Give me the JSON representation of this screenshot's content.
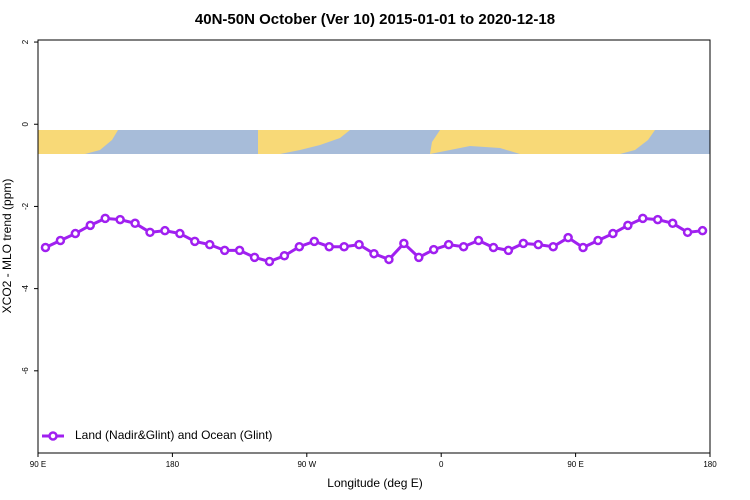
{
  "chart_data": {
    "type": "line",
    "title": "40N-50N October (Ver 10)   2015-01-01 to 2020-12-18",
    "x_label": "Longitude (deg E)",
    "y_label": "XCO2 - MLO trend (ppm)",
    "x": [
      95,
      105,
      115,
      125,
      135,
      145,
      155,
      165,
      175,
      185,
      195,
      205,
      215,
      225,
      235,
      245,
      255,
      265,
      275,
      285,
      295,
      305,
      315,
      325,
      335,
      345,
      355,
      365,
      375,
      385,
      395,
      405,
      415,
      425,
      435,
      445,
      455,
      465,
      475,
      485,
      495,
      505,
      515,
      525,
      535
    ],
    "series": [
      {
        "name": "Land (Nadir&Glint) and Ocean (Glint)",
        "color": "#a020f0",
        "values": [
          -3.0,
          -2.83,
          -2.66,
          -2.46,
          -2.29,
          -2.32,
          -2.41,
          -2.63,
          -2.59,
          -2.66,
          -2.85,
          -2.93,
          -3.07,
          -3.07,
          -3.24,
          -3.34,
          -3.2,
          -2.98,
          -2.85,
          -2.98,
          -2.98,
          -2.93,
          -3.15,
          -3.29,
          -2.9,
          -3.24,
          -3.05,
          -2.93,
          -2.98,
          -2.83,
          -3.0,
          -3.07,
          -2.9,
          -2.93,
          -2.98,
          -2.76,
          -3.0,
          -2.83,
          -2.66,
          -2.46,
          -2.29,
          -2.32,
          -2.41,
          -2.63,
          -2.59
        ]
      }
    ],
    "xlim": [
      90,
      540
    ],
    "xticks": [
      {
        "value": 90,
        "label": "90 E"
      },
      180,
      {
        "value": 270,
        "label": "90 W"
      },
      {
        "value": 360,
        "label": "0"
      },
      {
        "value": 450,
        "label": "90 E"
      },
      {
        "value": 540,
        "label": "180"
      }
    ],
    "ylim": [
      -8,
      2.05
    ],
    "yticks": [
      2,
      0,
      -2,
      -4,
      -6
    ],
    "legend": "bottom-left"
  }
}
